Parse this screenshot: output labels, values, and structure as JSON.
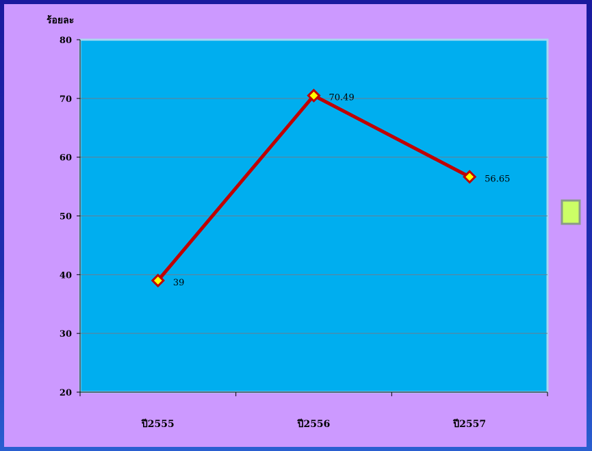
{
  "chart_data": {
    "type": "line",
    "title": "",
    "xlabel": "",
    "ylabel": "ร้อยละ",
    "categories": [
      "ปี2555",
      "ปี2556",
      "ปี2557"
    ],
    "series": [
      {
        "values": [
          39,
          70.49,
          56.65
        ],
        "labels": [
          "39",
          "70.49",
          "56.65"
        ]
      }
    ],
    "ylim": [
      20,
      80
    ],
    "yticks": [
      "20",
      "30",
      "40",
      "50",
      "60",
      "70",
      "80"
    ],
    "grid": true,
    "legend": "right",
    "colors": {
      "plot_background": "#00aeef",
      "chart_background": "#cc99ff",
      "line": "#c00000",
      "marker_fill": "#ffff00",
      "legend_swatch": "#ccff66"
    }
  }
}
